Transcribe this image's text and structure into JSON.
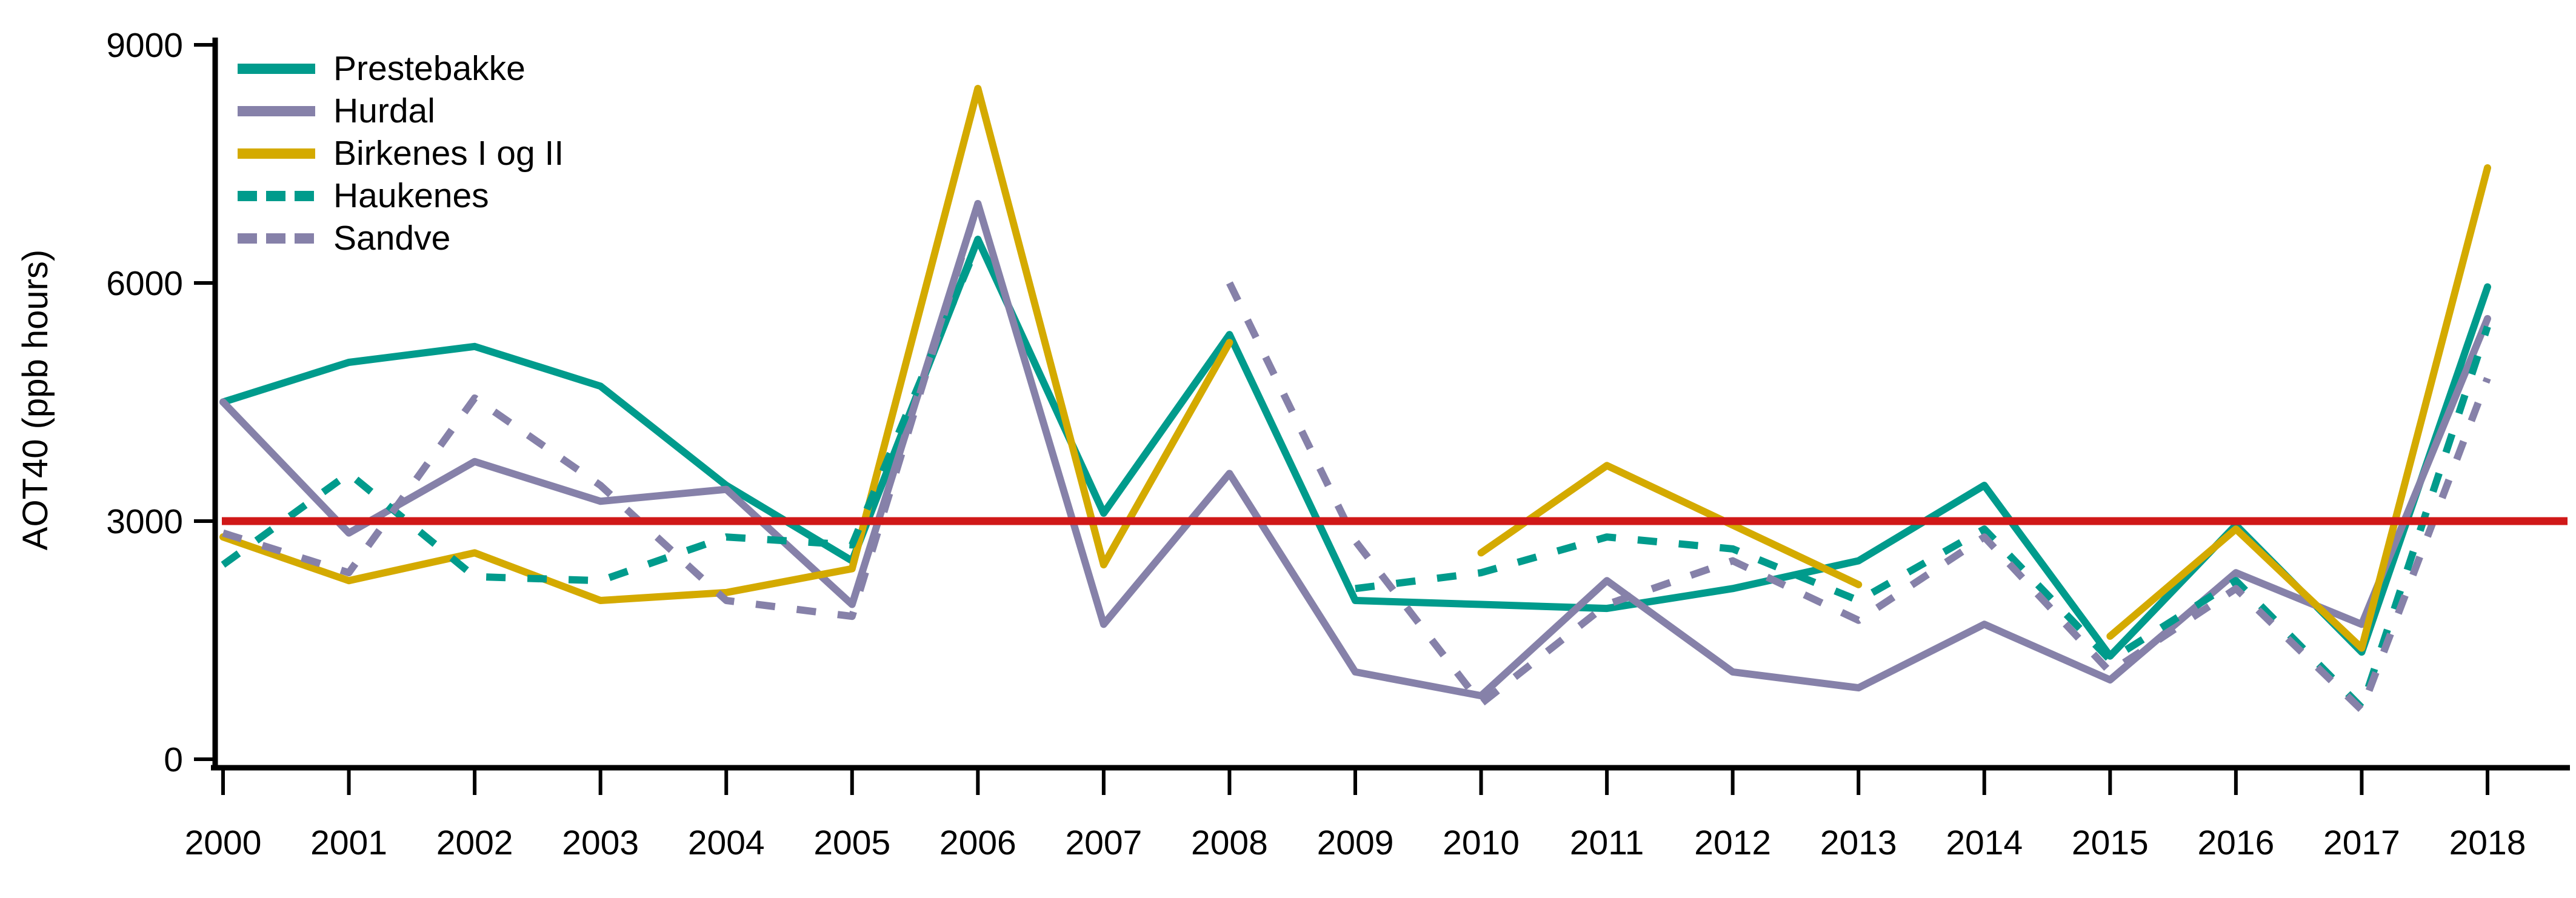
{
  "figure": {
    "background": "#ffffff",
    "axis_color": "#000000"
  },
  "chart_data": {
    "type": "line",
    "title": "",
    "xlabel": "",
    "ylabel": "AOT40 (ppb hours)",
    "ylim": [
      0,
      9000
    ],
    "grid": false,
    "legend_position": "top-left-inside",
    "x": [
      2000,
      2001,
      2002,
      2003,
      2004,
      2005,
      2006,
      2007,
      2008,
      2009,
      2010,
      2011,
      2012,
      2013,
      2014,
      2015,
      2016,
      2017,
      2018
    ],
    "x_tick_labels": [
      "2000",
      "2001",
      "2002",
      "2003",
      "2004",
      "2005",
      "2006",
      "2007",
      "2008",
      "2009",
      "2010",
      "2011",
      "2012",
      "2013",
      "2014",
      "2015",
      "2016",
      "2017",
      "2018"
    ],
    "y_ticks": [
      0,
      3000,
      6000,
      9000
    ],
    "y_tick_labels": [
      "0",
      "3000",
      "6000",
      "9000"
    ],
    "reference_line": {
      "value": 3000,
      "color": "#d01818"
    },
    "series": [
      {
        "name": "Prestebakke",
        "color": "#009b8c",
        "style": "solid",
        "values": [
          4500,
          5000,
          5200,
          4700,
          3450,
          2500,
          6550,
          3100,
          5350,
          2000,
          1950,
          1900,
          2150,
          2500,
          3450,
          1300,
          2950,
          1350,
          5950
        ]
      },
      {
        "name": "Hurdal",
        "color": "#8681a9",
        "style": "solid",
        "values": [
          4500,
          2850,
          3750,
          3250,
          3400,
          1950,
          7000,
          1700,
          3600,
          1100,
          800,
          2250,
          1100,
          900,
          1700,
          1000,
          2350,
          1700,
          5550
        ]
      },
      {
        "name": "Birkenes I og II",
        "color": "#d4aa00",
        "style": "solid",
        "values": [
          2800,
          2250,
          2600,
          2000,
          2100,
          2400,
          8450,
          2450,
          5250,
          null,
          2600,
          3700,
          2950,
          2200,
          null,
          1550,
          2900,
          1400,
          7450
        ]
      },
      {
        "name": "Haukenes",
        "color": "#009b8c",
        "style": "dashed",
        "values": [
          2450,
          3600,
          2300,
          2250,
          2800,
          2700,
          6500,
          null,
          null,
          2150,
          2350,
          2800,
          2650,
          2000,
          2900,
          1250,
          2250,
          650,
          5450
        ]
      },
      {
        "name": "Sandve",
        "color": "#8681a9",
        "style": "dashed",
        "values": [
          2850,
          2350,
          4550,
          3450,
          2000,
          1800,
          7000,
          null,
          6000,
          2750,
          700,
          1950,
          2500,
          1750,
          2800,
          1100,
          2150,
          620,
          4800
        ]
      }
    ]
  }
}
